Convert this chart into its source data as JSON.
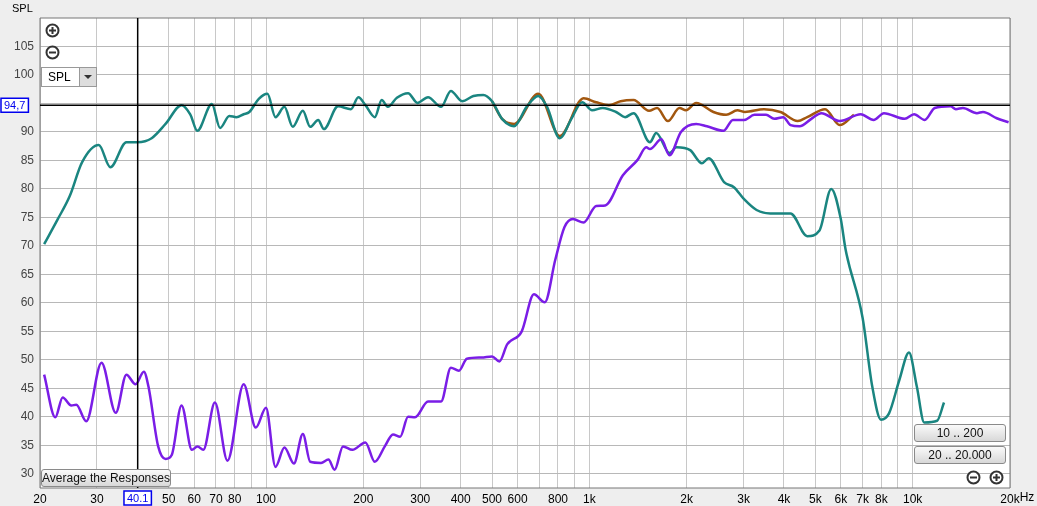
{
  "chart_data": {
    "type": "line",
    "ylabel": "SPL",
    "log": "x",
    "grid": true,
    "xlim": [
      20,
      20000
    ],
    "ylim": [
      27.5,
      110
    ],
    "xticks": [
      20,
      30,
      {
        "value": 40,
        "label": null
      },
      50,
      60,
      70,
      80,
      {
        "value": 90,
        "label": null
      },
      100,
      200,
      300,
      400,
      500,
      600,
      {
        "value": 700,
        "label": null
      },
      800,
      {
        "value": 900,
        "label": null
      },
      {
        "value": 1000,
        "label": "1k"
      },
      {
        "value": 2000,
        "label": "2k"
      },
      {
        "value": 3000,
        "label": "3k"
      },
      {
        "value": 4000,
        "label": "4k"
      },
      {
        "value": 5000,
        "label": "5k"
      },
      {
        "value": 6000,
        "label": "6k"
      },
      {
        "value": 7000,
        "label": "7k"
      },
      {
        "value": 8000,
        "label": "8k"
      },
      {
        "value": 9000,
        "label": null
      },
      {
        "value": 10000,
        "label": "10k"
      },
      {
        "value": 20000,
        "label": "20k"
      }
    ],
    "xlabel": "Hz",
    "yticks": [
      30,
      35,
      40,
      45,
      50,
      55,
      60,
      65,
      70,
      75,
      80,
      85,
      90,
      {
        "value": 95,
        "label": null
      },
      100,
      105
    ],
    "ref_lines": [
      {
        "axis": "x",
        "value": 40.1,
        "label": "40.1",
        "color": "#000000"
      },
      {
        "axis": "y",
        "value": 94.7,
        "label": "94,7",
        "color": "#000000"
      }
    ],
    "annotations": [
      "SPL",
      "Average the Responses",
      "10 .. 200",
      "20 .. 20.000"
    ],
    "series": [
      {
        "color": "#7a1de6",
        "x": [
          20.6,
          22.3,
          23.5,
          25,
          25.9,
          27.8,
          31,
          34.3,
          37,
          39.5,
          41.9,
          43.3,
          46.4,
          48.9,
          51.1,
          54.8,
          59,
          61.4,
          64,
          69.5,
          76,
          85.3,
          93,
          100,
          107,
          114,
          122,
          130,
          137,
          148,
          156,
          163,
          173,
          185,
          203,
          217,
          233,
          247,
          260,
          275,
          289,
          317,
          348,
          373,
          395,
          418,
          464,
          500,
          527,
          557,
          618,
          674,
          728,
          785,
          838,
          890,
          960,
          1050,
          1120,
          1270,
          1410,
          1500,
          1540,
          1670,
          1770,
          1920,
          2140,
          2310,
          2600,
          2780,
          3010,
          3240,
          3520,
          3730,
          3980,
          4190,
          4470,
          4860,
          5220,
          5950,
          6910,
          7570,
          8150,
          9450,
          10100,
          10900,
          11700,
          13100,
          13600,
          14300,
          15800,
          16500,
          18200,
          19800
        ],
        "values": [
          47.4,
          39.9,
          43.4,
          42.0,
          42.1,
          39.2,
          49.5,
          40.7,
          47.4,
          45.7,
          47.9,
          45.3,
          34.8,
          32.6,
          33.3,
          42.0,
          34.2,
          34.8,
          34.2,
          42.5,
          32.3,
          45.7,
          38.1,
          41.6,
          31.2,
          34.6,
          31.8,
          37.0,
          32.1,
          31.9,
          32.5,
          30.7,
          34.8,
          34.2,
          35.5,
          32.1,
          34.8,
          36.9,
          36.5,
          40.0,
          39.9,
          42.7,
          42.7,
          48.6,
          48.1,
          50.2,
          50.4,
          50.6,
          49.7,
          52.7,
          55.0,
          61.5,
          60.1,
          67.6,
          73.3,
          74.7,
          74.1,
          77.0,
          77.1,
          82.4,
          85.1,
          87.3,
          87.0,
          88.7,
          85.9,
          90.0,
          91.4,
          91.0,
          90.2,
          92.1,
          92.1,
          93.0,
          93.0,
          92.3,
          92.6,
          91.2,
          91.0,
          92.3,
          93.3,
          91.9,
          93.1,
          92.1,
          93.3,
          92.3,
          93.1,
          92.1,
          94.2,
          94.5,
          94.0,
          94.2,
          93.3,
          93.5,
          92.4,
          91.7
        ]
      },
      {
        "color": "#1a8580",
        "x": [
          20.6,
          22.7,
          24.7,
          27,
          30.4,
          33,
          37,
          40,
          44.3,
          48.9,
          54.8,
          58.3,
          61.3,
          68,
          72.1,
          77,
          81,
          85.3,
          88.8,
          95,
          101,
          107,
          114,
          121,
          130,
          137,
          145,
          151,
          167,
          183,
          193,
          203,
          217,
          228,
          238,
          254,
          275,
          294,
          317,
          348,
          373,
          404,
          438,
          470,
          500,
          537,
          585,
          640,
          695,
          740,
          810,
          880,
          950,
          1020,
          1100,
          1210,
          1290,
          1370,
          1540,
          1610,
          1770,
          1860,
          2050,
          2230,
          2340,
          2610,
          2800,
          3010,
          3290,
          3630,
          4190,
          4720,
          5150,
          5600,
          5990,
          6200,
          7000,
          7500,
          7980,
          8450,
          9100,
          9740,
          10300,
          10860,
          11900,
          12500
        ],
        "values": [
          70.3,
          74.7,
          78.7,
          84.7,
          87.7,
          83.8,
          88.2,
          88.2,
          88.9,
          91.4,
          94.7,
          93.1,
          90.2,
          94.9,
          90.7,
          92.8,
          92.6,
          93.1,
          93.5,
          95.8,
          96.7,
          92.6,
          94.4,
          90.9,
          93.7,
          90.9,
          92.1,
          90.5,
          94.5,
          94.0,
          96.1,
          94.7,
          92.6,
          95.6,
          94.4,
          96.0,
          96.8,
          95.1,
          96.1,
          94.4,
          97.2,
          95.4,
          96.3,
          96.5,
          95.4,
          92.3,
          91.0,
          94.4,
          96.3,
          94.4,
          88.9,
          92.3,
          95.2,
          93.8,
          94.2,
          93.5,
          92.6,
          93.3,
          88.2,
          89.8,
          86.3,
          87.3,
          86.8,
          84.5,
          85.4,
          81.2,
          80.3,
          78.2,
          76.3,
          75.7,
          75.7,
          71.7,
          72.7,
          80.0,
          74.8,
          69.4,
          57.4,
          45.3,
          39.5,
          40.6,
          46.5,
          51.3,
          45.3,
          39.0,
          39.3,
          42.5
        ]
      },
      {
        "color": "#a2570f",
        "x": [
          500,
          537,
          585,
          695,
          810,
          960,
          1050,
          1150,
          1250,
          1370,
          1530,
          1620,
          1750,
          1900,
          1990,
          2140,
          2420,
          2650,
          2870,
          3030,
          3470,
          3900,
          4410,
          4720,
          5360,
          5950,
          6580
        ],
        "values": [
          95.4,
          92.3,
          91.4,
          96.7,
          89.3,
          95.9,
          95.2,
          94.7,
          95.4,
          95.6,
          93.7,
          94.2,
          91.9,
          94.2,
          93.8,
          95.1,
          93.5,
          93.0,
          93.8,
          93.5,
          94.0,
          93.5,
          91.9,
          92.6,
          94.0,
          91.2,
          93.0
        ]
      }
    ]
  }
}
